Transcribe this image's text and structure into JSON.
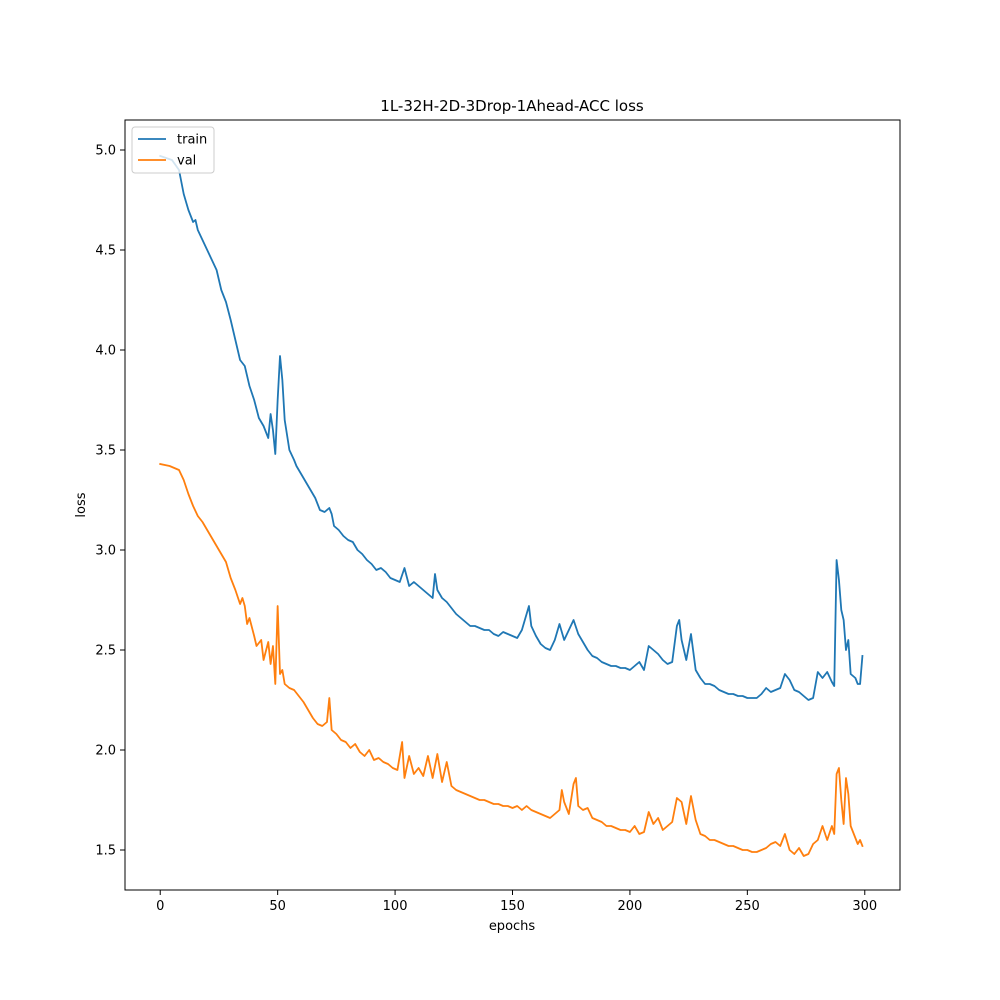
{
  "chart_data": {
    "type": "line",
    "title": "1L-32H-2D-3Drop-1Ahead-ACC loss",
    "xlabel": "epochs",
    "ylabel": "loss",
    "xlim": [
      -15,
      315
    ],
    "ylim": [
      1.3,
      5.15
    ],
    "xticks": [
      "0",
      "50",
      "100",
      "150",
      "200",
      "250",
      "300"
    ],
    "yticks": [
      "1.5",
      "2.0",
      "2.5",
      "3.0",
      "3.5",
      "4.0",
      "4.5",
      "5.0"
    ],
    "grid": false,
    "legend_position": "top-left",
    "series": [
      {
        "name": "train",
        "color": "#1f77b4",
        "points": [
          [
            0,
            4.97
          ],
          [
            5,
            4.95
          ],
          [
            8,
            4.9
          ],
          [
            10,
            4.78
          ],
          [
            12,
            4.7
          ],
          [
            14,
            4.64
          ],
          [
            15,
            4.65
          ],
          [
            16,
            4.6
          ],
          [
            18,
            4.55
          ],
          [
            20,
            4.5
          ],
          [
            22,
            4.45
          ],
          [
            24,
            4.4
          ],
          [
            26,
            4.3
          ],
          [
            28,
            4.24
          ],
          [
            30,
            4.15
          ],
          [
            32,
            4.05
          ],
          [
            34,
            3.95
          ],
          [
            36,
            3.92
          ],
          [
            38,
            3.82
          ],
          [
            40,
            3.75
          ],
          [
            42,
            3.66
          ],
          [
            44,
            3.62
          ],
          [
            46,
            3.56
          ],
          [
            47,
            3.68
          ],
          [
            48,
            3.6
          ],
          [
            49,
            3.48
          ],
          [
            50,
            3.75
          ],
          [
            51,
            3.97
          ],
          [
            52,
            3.85
          ],
          [
            53,
            3.65
          ],
          [
            55,
            3.5
          ],
          [
            57,
            3.45
          ],
          [
            58,
            3.42
          ],
          [
            60,
            3.38
          ],
          [
            62,
            3.34
          ],
          [
            64,
            3.3
          ],
          [
            66,
            3.26
          ],
          [
            68,
            3.2
          ],
          [
            70,
            3.19
          ],
          [
            72,
            3.21
          ],
          [
            73,
            3.18
          ],
          [
            74,
            3.12
          ],
          [
            76,
            3.1
          ],
          [
            78,
            3.07
          ],
          [
            80,
            3.05
          ],
          [
            82,
            3.04
          ],
          [
            84,
            3.0
          ],
          [
            86,
            2.98
          ],
          [
            88,
            2.95
          ],
          [
            90,
            2.93
          ],
          [
            92,
            2.9
          ],
          [
            94,
            2.91
          ],
          [
            96,
            2.89
          ],
          [
            98,
            2.86
          ],
          [
            100,
            2.85
          ],
          [
            102,
            2.84
          ],
          [
            104,
            2.91
          ],
          [
            106,
            2.82
          ],
          [
            108,
            2.84
          ],
          [
            110,
            2.82
          ],
          [
            112,
            2.8
          ],
          [
            114,
            2.78
          ],
          [
            116,
            2.76
          ],
          [
            117,
            2.88
          ],
          [
            118,
            2.8
          ],
          [
            120,
            2.76
          ],
          [
            122,
            2.74
          ],
          [
            124,
            2.71
          ],
          [
            126,
            2.68
          ],
          [
            128,
            2.66
          ],
          [
            130,
            2.64
          ],
          [
            132,
            2.62
          ],
          [
            134,
            2.62
          ],
          [
            136,
            2.61
          ],
          [
            138,
            2.6
          ],
          [
            140,
            2.6
          ],
          [
            142,
            2.58
          ],
          [
            144,
            2.57
          ],
          [
            146,
            2.59
          ],
          [
            148,
            2.58
          ],
          [
            150,
            2.57
          ],
          [
            152,
            2.56
          ],
          [
            154,
            2.6
          ],
          [
            156,
            2.68
          ],
          [
            157,
            2.72
          ],
          [
            158,
            2.62
          ],
          [
            160,
            2.57
          ],
          [
            162,
            2.53
          ],
          [
            164,
            2.51
          ],
          [
            166,
            2.5
          ],
          [
            168,
            2.55
          ],
          [
            170,
            2.63
          ],
          [
            172,
            2.55
          ],
          [
            174,
            2.6
          ],
          [
            176,
            2.65
          ],
          [
            178,
            2.58
          ],
          [
            180,
            2.54
          ],
          [
            182,
            2.5
          ],
          [
            184,
            2.47
          ],
          [
            186,
            2.46
          ],
          [
            188,
            2.44
          ],
          [
            190,
            2.43
          ],
          [
            192,
            2.42
          ],
          [
            194,
            2.42
          ],
          [
            196,
            2.41
          ],
          [
            198,
            2.41
          ],
          [
            200,
            2.4
          ],
          [
            202,
            2.42
          ],
          [
            204,
            2.44
          ],
          [
            206,
            2.4
          ],
          [
            208,
            2.52
          ],
          [
            210,
            2.5
          ],
          [
            212,
            2.48
          ],
          [
            214,
            2.45
          ],
          [
            216,
            2.43
          ],
          [
            218,
            2.44
          ],
          [
            220,
            2.62
          ],
          [
            221,
            2.65
          ],
          [
            222,
            2.55
          ],
          [
            224,
            2.45
          ],
          [
            226,
            2.58
          ],
          [
            228,
            2.4
          ],
          [
            230,
            2.36
          ],
          [
            232,
            2.33
          ],
          [
            234,
            2.33
          ],
          [
            236,
            2.32
          ],
          [
            238,
            2.3
          ],
          [
            240,
            2.29
          ],
          [
            242,
            2.28
          ],
          [
            244,
            2.28
          ],
          [
            246,
            2.27
          ],
          [
            248,
            2.27
          ],
          [
            250,
            2.26
          ],
          [
            252,
            2.26
          ],
          [
            254,
            2.26
          ],
          [
            256,
            2.28
          ],
          [
            258,
            2.31
          ],
          [
            260,
            2.29
          ],
          [
            262,
            2.3
          ],
          [
            264,
            2.31
          ],
          [
            266,
            2.38
          ],
          [
            268,
            2.35
          ],
          [
            270,
            2.3
          ],
          [
            272,
            2.29
          ],
          [
            274,
            2.27
          ],
          [
            276,
            2.25
          ],
          [
            278,
            2.26
          ],
          [
            280,
            2.39
          ],
          [
            282,
            2.36
          ],
          [
            284,
            2.39
          ],
          [
            286,
            2.34
          ],
          [
            287,
            2.32
          ],
          [
            288,
            2.95
          ],
          [
            289,
            2.85
          ],
          [
            290,
            2.7
          ],
          [
            291,
            2.65
          ],
          [
            292,
            2.5
          ],
          [
            293,
            2.55
          ],
          [
            294,
            2.38
          ],
          [
            296,
            2.36
          ],
          [
            297,
            2.33
          ],
          [
            298,
            2.33
          ],
          [
            299,
            2.47
          ]
        ]
      },
      {
        "name": "val",
        "color": "#ff7f0e",
        "points": [
          [
            0,
            3.43
          ],
          [
            4,
            3.42
          ],
          [
            8,
            3.4
          ],
          [
            10,
            3.35
          ],
          [
            12,
            3.28
          ],
          [
            14,
            3.22
          ],
          [
            16,
            3.17
          ],
          [
            18,
            3.14
          ],
          [
            20,
            3.1
          ],
          [
            22,
            3.06
          ],
          [
            24,
            3.02
          ],
          [
            26,
            2.98
          ],
          [
            28,
            2.94
          ],
          [
            30,
            2.86
          ],
          [
            32,
            2.8
          ],
          [
            34,
            2.73
          ],
          [
            35,
            2.76
          ],
          [
            36,
            2.72
          ],
          [
            37,
            2.63
          ],
          [
            38,
            2.66
          ],
          [
            40,
            2.57
          ],
          [
            41,
            2.52
          ],
          [
            43,
            2.55
          ],
          [
            44,
            2.45
          ],
          [
            46,
            2.54
          ],
          [
            47,
            2.43
          ],
          [
            48,
            2.52
          ],
          [
            49,
            2.33
          ],
          [
            50,
            2.72
          ],
          [
            51,
            2.38
          ],
          [
            52,
            2.4
          ],
          [
            53,
            2.33
          ],
          [
            55,
            2.31
          ],
          [
            57,
            2.3
          ],
          [
            59,
            2.27
          ],
          [
            61,
            2.24
          ],
          [
            63,
            2.2
          ],
          [
            65,
            2.16
          ],
          [
            67,
            2.13
          ],
          [
            69,
            2.12
          ],
          [
            71,
            2.14
          ],
          [
            72,
            2.26
          ],
          [
            73,
            2.1
          ],
          [
            75,
            2.08
          ],
          [
            77,
            2.05
          ],
          [
            79,
            2.04
          ],
          [
            81,
            2.01
          ],
          [
            83,
            2.03
          ],
          [
            85,
            1.99
          ],
          [
            87,
            1.97
          ],
          [
            89,
            2.0
          ],
          [
            91,
            1.95
          ],
          [
            93,
            1.96
          ],
          [
            95,
            1.94
          ],
          [
            97,
            1.93
          ],
          [
            99,
            1.91
          ],
          [
            101,
            1.9
          ],
          [
            103,
            2.04
          ],
          [
            104,
            1.86
          ],
          [
            106,
            1.97
          ],
          [
            108,
            1.88
          ],
          [
            110,
            1.91
          ],
          [
            112,
            1.87
          ],
          [
            114,
            1.97
          ],
          [
            116,
            1.86
          ],
          [
            118,
            1.98
          ],
          [
            120,
            1.84
          ],
          [
            122,
            1.94
          ],
          [
            124,
            1.82
          ],
          [
            126,
            1.8
          ],
          [
            128,
            1.79
          ],
          [
            130,
            1.78
          ],
          [
            132,
            1.77
          ],
          [
            134,
            1.76
          ],
          [
            136,
            1.75
          ],
          [
            138,
            1.75
          ],
          [
            140,
            1.74
          ],
          [
            142,
            1.73
          ],
          [
            144,
            1.73
          ],
          [
            146,
            1.72
          ],
          [
            148,
            1.72
          ],
          [
            150,
            1.71
          ],
          [
            152,
            1.72
          ],
          [
            154,
            1.7
          ],
          [
            156,
            1.72
          ],
          [
            158,
            1.7
          ],
          [
            160,
            1.69
          ],
          [
            162,
            1.68
          ],
          [
            164,
            1.67
          ],
          [
            166,
            1.66
          ],
          [
            168,
            1.68
          ],
          [
            170,
            1.7
          ],
          [
            171,
            1.8
          ],
          [
            172,
            1.74
          ],
          [
            174,
            1.68
          ],
          [
            176,
            1.83
          ],
          [
            177,
            1.86
          ],
          [
            178,
            1.72
          ],
          [
            180,
            1.7
          ],
          [
            182,
            1.71
          ],
          [
            184,
            1.66
          ],
          [
            186,
            1.65
          ],
          [
            188,
            1.64
          ],
          [
            190,
            1.62
          ],
          [
            192,
            1.62
          ],
          [
            194,
            1.61
          ],
          [
            196,
            1.6
          ],
          [
            198,
            1.6
          ],
          [
            200,
            1.59
          ],
          [
            202,
            1.62
          ],
          [
            204,
            1.58
          ],
          [
            206,
            1.59
          ],
          [
            208,
            1.69
          ],
          [
            210,
            1.63
          ],
          [
            212,
            1.66
          ],
          [
            214,
            1.6
          ],
          [
            216,
            1.62
          ],
          [
            218,
            1.64
          ],
          [
            220,
            1.76
          ],
          [
            222,
            1.74
          ],
          [
            224,
            1.63
          ],
          [
            226,
            1.77
          ],
          [
            228,
            1.65
          ],
          [
            230,
            1.58
          ],
          [
            232,
            1.57
          ],
          [
            234,
            1.55
          ],
          [
            236,
            1.55
          ],
          [
            238,
            1.54
          ],
          [
            240,
            1.53
          ],
          [
            242,
            1.52
          ],
          [
            244,
            1.52
          ],
          [
            246,
            1.51
          ],
          [
            248,
            1.5
          ],
          [
            250,
            1.5
          ],
          [
            252,
            1.49
          ],
          [
            254,
            1.49
          ],
          [
            256,
            1.5
          ],
          [
            258,
            1.51
          ],
          [
            260,
            1.53
          ],
          [
            262,
            1.54
          ],
          [
            264,
            1.52
          ],
          [
            266,
            1.58
          ],
          [
            268,
            1.5
          ],
          [
            270,
            1.48
          ],
          [
            272,
            1.51
          ],
          [
            274,
            1.47
          ],
          [
            276,
            1.48
          ],
          [
            278,
            1.53
          ],
          [
            280,
            1.55
          ],
          [
            282,
            1.62
          ],
          [
            284,
            1.55
          ],
          [
            286,
            1.62
          ],
          [
            287,
            1.58
          ],
          [
            288,
            1.88
          ],
          [
            289,
            1.91
          ],
          [
            290,
            1.75
          ],
          [
            291,
            1.63
          ],
          [
            292,
            1.86
          ],
          [
            293,
            1.78
          ],
          [
            294,
            1.62
          ],
          [
            295,
            1.59
          ],
          [
            296,
            1.56
          ],
          [
            297,
            1.53
          ],
          [
            298,
            1.55
          ],
          [
            299,
            1.52
          ]
        ]
      }
    ]
  }
}
